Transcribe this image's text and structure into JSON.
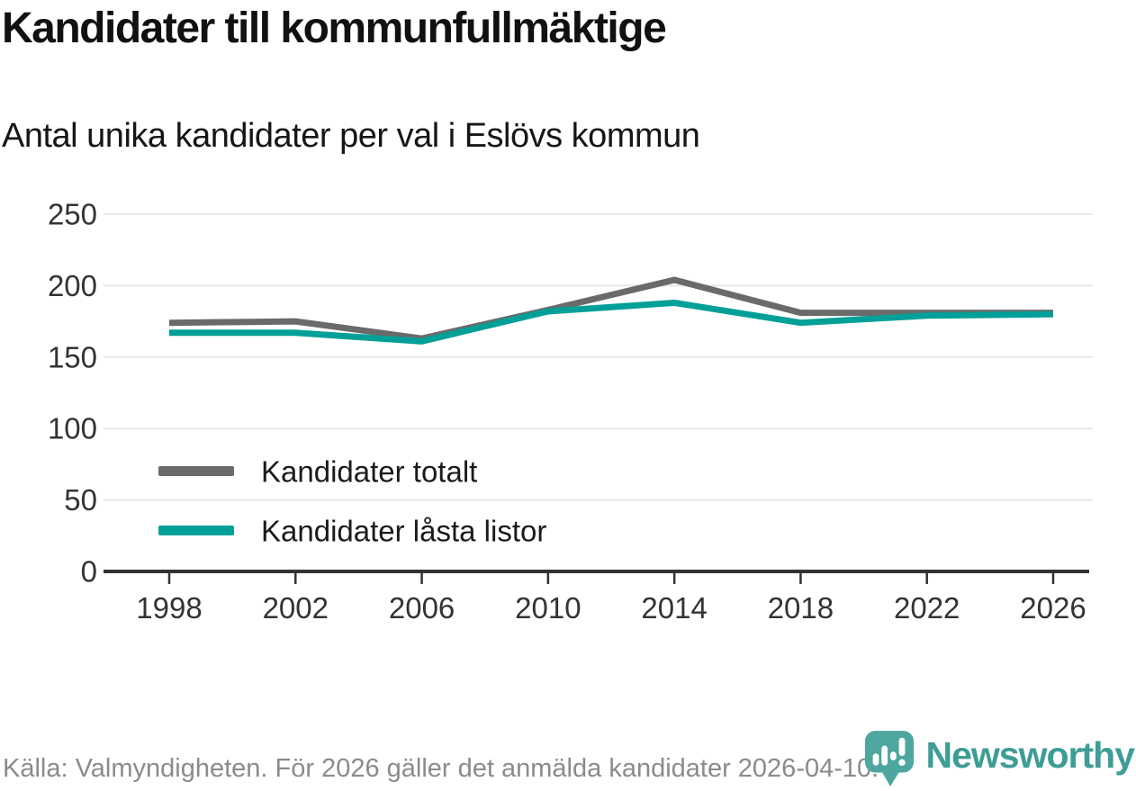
{
  "header": {
    "title": "Kandidater till kommunfullmäktige",
    "subtitle": "Antal unika kandidater per val i Eslövs kommun"
  },
  "footer": {
    "source": "Källa: Valmyndigheten. För 2026 gäller det anmälda kandidater 2026-04-10."
  },
  "branding": {
    "name": "Newsworthy",
    "logo_icon": "bar-chart-pin-icon",
    "wordmark_color": "#3e9d96",
    "pin_color": "#4da79f"
  },
  "colors": {
    "series_total": "#6b6a6b",
    "series_locked": "#00a098",
    "grid": "#e8e8e8",
    "axis": "#333333",
    "tick_label": "#333333",
    "legend_label": "#1a1a1a",
    "footer_text": "#8b8b8b",
    "background": "#ffffff"
  },
  "chart_data": {
    "type": "line",
    "title": "Kandidater till kommunfullmäktige",
    "subtitle": "Antal unika kandidater per val i Eslövs kommun",
    "x": [
      1998,
      2002,
      2006,
      2010,
      2014,
      2018,
      2022,
      2026
    ],
    "series": [
      {
        "name": "Kandidater totalt",
        "color": "#6b6a6b",
        "values": [
          174,
          175,
          163,
          183,
          204,
          181,
          181,
          181
        ]
      },
      {
        "name": "Kandidater låsta listor",
        "color": "#00a098",
        "values": [
          167,
          167,
          161,
          182,
          188,
          174,
          179,
          180
        ]
      }
    ],
    "xlabel": "",
    "ylabel": "",
    "ylim": [
      0,
      250
    ],
    "yticks": [
      0,
      50,
      100,
      150,
      200,
      250
    ],
    "grid": true,
    "legend_position": "inside-left"
  }
}
